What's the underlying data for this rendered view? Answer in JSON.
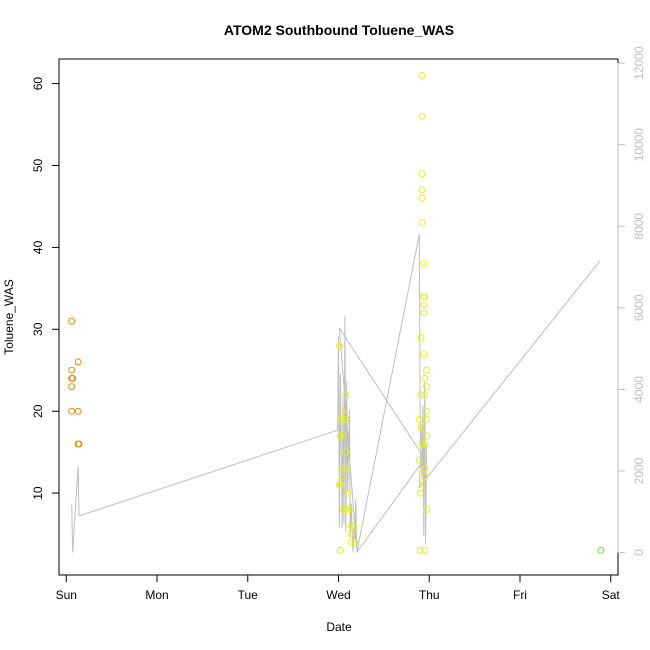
{
  "chart_data": {
    "type": "scatter",
    "title": "ATOM2 Southbound Toluene_WAS",
    "xlabel": "Date",
    "ylabel": "Toluene_WAS",
    "x_ticks": [
      "Sun",
      "Mon",
      "Tue",
      "Wed",
      "Thu",
      "Fri",
      "Sat"
    ],
    "xlim": [
      -0.08,
      6.08
    ],
    "ylim": [
      0,
      63
    ],
    "y_ticks": [
      10,
      20,
      30,
      40,
      50,
      60
    ],
    "y2lim": [
      -550,
      12100
    ],
    "y2_ticks": [
      0,
      2000,
      4000,
      6000,
      8000,
      10000,
      12000
    ],
    "colors": {
      "sunday_points": "#f08a00",
      "midweek_points": "#e6ee1a",
      "saturday_point": "#6ee030",
      "secondary_line": "#bebebe",
      "frame": "#000000"
    },
    "series": [
      {
        "color_key": "sunday_points",
        "points": [
          [
            0.06,
            31
          ],
          [
            0.06,
            25
          ],
          [
            0.07,
            24
          ],
          [
            0.06,
            24
          ],
          [
            0.06,
            23
          ],
          [
            0.06,
            20
          ],
          [
            0.13,
            26
          ],
          [
            0.13,
            20
          ],
          [
            0.13,
            16
          ],
          [
            0.14,
            16
          ]
        ]
      },
      {
        "color_key": "midweek_points",
        "points": [
          [
            3.01,
            28
          ],
          [
            3.02,
            19
          ],
          [
            3.02,
            17
          ],
          [
            3.01,
            11
          ],
          [
            3.02,
            3
          ],
          [
            3.04,
            20
          ],
          [
            3.04,
            19
          ],
          [
            3.05,
            17
          ],
          [
            3.05,
            13
          ],
          [
            3.04,
            12
          ],
          [
            3.03,
            11
          ],
          [
            3.05,
            8
          ],
          [
            3.08,
            22
          ],
          [
            3.08,
            19
          ],
          [
            3.08,
            15
          ],
          [
            3.08,
            13
          ],
          [
            3.08,
            8
          ],
          [
            3.1,
            10
          ],
          [
            3.12,
            8
          ],
          [
            3.14,
            6
          ],
          [
            3.14,
            5
          ],
          [
            3.14,
            4
          ],
          [
            3.17,
            6
          ],
          [
            3.18,
            4
          ],
          [
            3.89,
            19
          ],
          [
            3.89,
            14
          ],
          [
            3.9,
            10
          ],
          [
            3.9,
            3
          ],
          [
            3.91,
            29
          ],
          [
            3.91,
            22
          ],
          [
            3.91,
            18
          ],
          [
            3.92,
            16
          ],
          [
            3.92,
            11
          ],
          [
            3.92,
            61
          ],
          [
            3.92,
            56
          ],
          [
            3.92,
            49
          ],
          [
            3.92,
            47
          ],
          [
            3.92,
            46
          ],
          [
            3.92,
            43
          ],
          [
            3.94,
            38
          ],
          [
            3.94,
            34
          ],
          [
            3.95,
            34
          ],
          [
            3.94,
            33
          ],
          [
            3.94,
            32
          ],
          [
            3.94,
            27
          ],
          [
            3.95,
            24
          ],
          [
            3.95,
            22
          ],
          [
            3.95,
            16
          ],
          [
            3.95,
            13
          ],
          [
            3.95,
            12
          ],
          [
            3.95,
            3
          ],
          [
            3.97,
            25
          ],
          [
            3.97,
            23
          ],
          [
            3.97,
            20
          ],
          [
            3.97,
            19
          ],
          [
            3.97,
            17
          ],
          [
            3.97,
            8
          ]
        ]
      },
      {
        "color_key": "saturday_point",
        "points": [
          [
            5.89,
            3
          ]
        ]
      }
    ],
    "secondary_series": {
      "color_key": "secondary_line",
      "points": [
        [
          0.06,
          1200
        ],
        [
          0.07,
          0
        ],
        [
          0.13,
          2100
        ],
        [
          0.14,
          900
        ],
        [
          2.99,
          3000
        ],
        [
          3.0,
          5300
        ],
        [
          3.01,
          600
        ],
        [
          3.02,
          4400
        ],
        [
          3.03,
          2600
        ],
        [
          3.04,
          600
        ],
        [
          3.05,
          3800
        ],
        [
          3.06,
          700
        ],
        [
          3.07,
          5800
        ],
        [
          3.08,
          500
        ],
        [
          3.09,
          4200
        ],
        [
          3.1,
          1500
        ],
        [
          3.12,
          3500
        ],
        [
          3.13,
          400
        ],
        [
          3.14,
          1200
        ],
        [
          3.16,
          0
        ],
        [
          3.17,
          600
        ],
        [
          3.18,
          300
        ],
        [
          3.19,
          1300
        ],
        [
          3.2,
          100
        ],
        [
          3.01,
          5500
        ],
        [
          3.95,
          2300
        ],
        [
          3.2,
          0
        ],
        [
          3.21,
          100
        ],
        [
          3.89,
          7800
        ],
        [
          3.9,
          3000
        ],
        [
          3.92,
          1800
        ],
        [
          3.93,
          3600
        ],
        [
          3.94,
          400
        ],
        [
          3.95,
          4200
        ],
        [
          3.96,
          200
        ],
        [
          3.97,
          2600
        ],
        [
          3.92,
          2800
        ],
        [
          3.92,
          3100
        ],
        [
          3.89,
          1600
        ],
        [
          5.88,
          7150
        ]
      ]
    }
  }
}
